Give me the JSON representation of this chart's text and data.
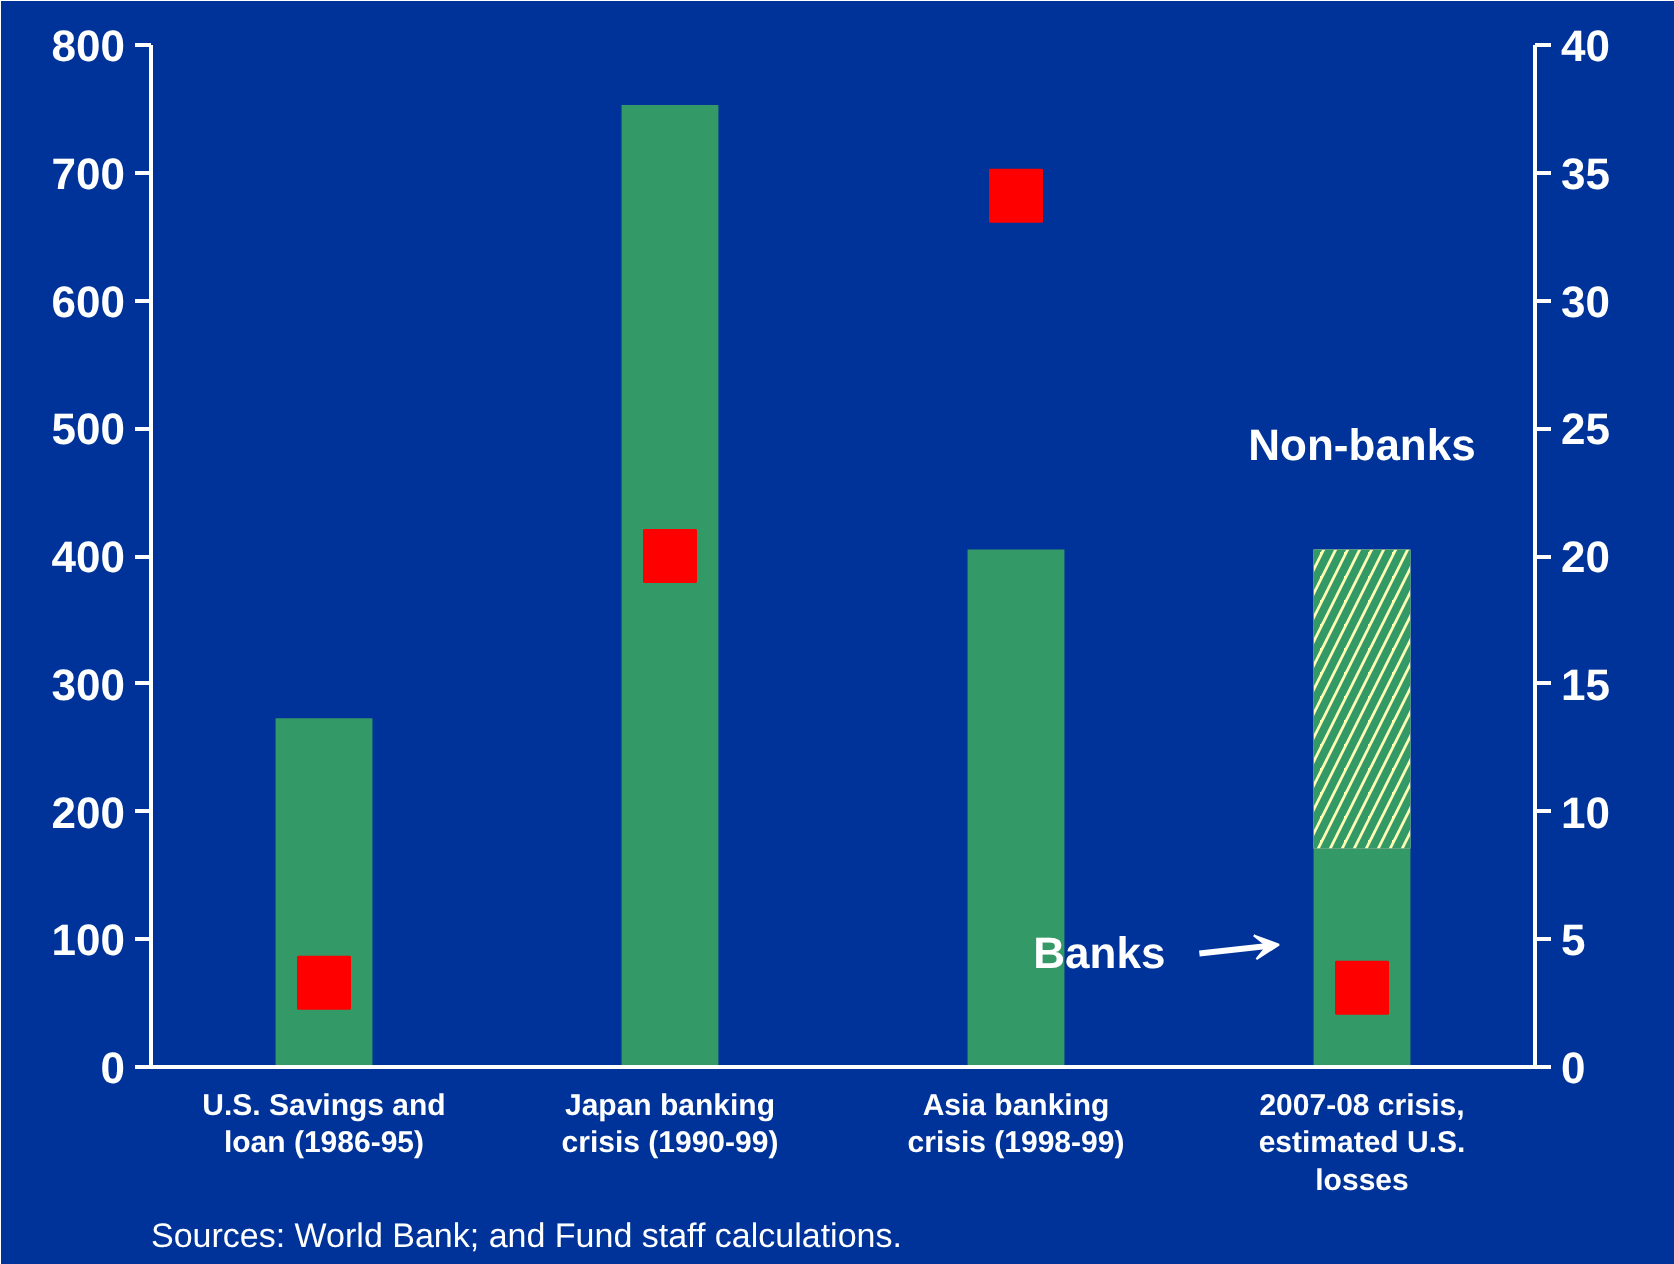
{
  "chart_data": {
    "type": "bar",
    "stacked": true,
    "categories": [
      "U.S. Savings and loan (1986-95)",
      "Japan banking crisis (1990-99)",
      "Asia banking crisis (1998-99)",
      "2007-08 crisis, estimated U.S. losses"
    ],
    "series": [
      {
        "name": "Banks",
        "color": "#339966",
        "values": [
          273,
          753,
          405,
          171
        ]
      },
      {
        "name": "Non-banks",
        "color": "#ffffb3",
        "values": [
          null,
          null,
          null,
          234
        ]
      },
      {
        "type": "scatter",
        "axis": "y2",
        "color": "#ff0000",
        "values": [
          3.3,
          20,
          34.1,
          3.1
        ]
      }
    ],
    "ylim": [
      0,
      800
    ],
    "yticks": [
      0,
      100,
      200,
      300,
      400,
      500,
      600,
      700,
      800
    ],
    "y2lim": [
      0,
      40
    ],
    "y2ticks": [
      0,
      5,
      10,
      15,
      20,
      25,
      30,
      35,
      40
    ],
    "grid": false,
    "marker": "square",
    "annotations": [
      "Sources:  World Bank; and Fund staff calculations."
    ]
  }
}
